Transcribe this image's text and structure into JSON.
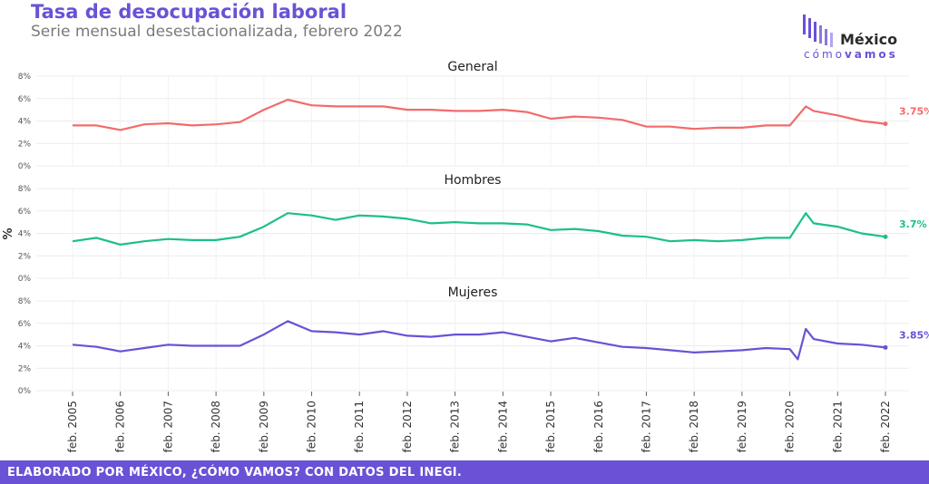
{
  "header": {
    "title": "Tasa de desocupación laboral",
    "subtitle": "Serie mensual desestacionalizada, febrero 2022"
  },
  "logo": {
    "word": "México",
    "sub_light": "cómo",
    "sub_bold": "vamos"
  },
  "footer": {
    "text": "ELABORADO POR MÉXICO, ¿CÓMO VAMOS? CON DATOS DEL INEGI."
  },
  "colors": {
    "accent": "#6a51d6",
    "general": "#f26b6b",
    "hombres": "#1cbf8a",
    "mujeres": "#6a51d6"
  },
  "chart_data": {
    "type": "line",
    "ylabel": "%",
    "y_ticks": [
      "0%",
      "2%",
      "4%",
      "6%",
      "8%"
    ],
    "ylim": [
      0,
      8
    ],
    "x_ticks": [
      "feb. 2005",
      "feb. 2006",
      "feb. 2007",
      "feb. 2008",
      "feb. 2009",
      "feb. 2010",
      "feb. 2011",
      "feb. 2012",
      "feb. 2013",
      "feb. 2014",
      "feb. 2015",
      "feb. 2016",
      "feb. 2017",
      "feb. 2018",
      "feb. 2019",
      "feb. 2020",
      "feb. 2021",
      "feb. 2022"
    ],
    "xlim": [
      "2005-02",
      "2022-02"
    ],
    "grid": true,
    "points_note": "x values are semiannual dates (YYYY-MM)",
    "panels": [
      {
        "name": "General",
        "color": "#f26b6b",
        "end_label": "3.75%",
        "x": [
          "2005-02",
          "2005-08",
          "2006-02",
          "2006-08",
          "2007-02",
          "2007-08",
          "2008-02",
          "2008-08",
          "2009-02",
          "2009-08",
          "2010-02",
          "2010-08",
          "2011-02",
          "2011-08",
          "2012-02",
          "2012-08",
          "2013-02",
          "2013-08",
          "2014-02",
          "2014-08",
          "2015-02",
          "2015-08",
          "2016-02",
          "2016-08",
          "2017-02",
          "2017-08",
          "2018-02",
          "2018-08",
          "2019-02",
          "2019-08",
          "2020-02",
          "2020-06",
          "2020-08",
          "2021-02",
          "2021-08",
          "2022-02"
        ],
        "values": [
          3.6,
          3.6,
          3.2,
          3.7,
          3.8,
          3.6,
          3.7,
          3.9,
          5.0,
          5.9,
          5.4,
          5.3,
          5.3,
          5.3,
          5.0,
          5.0,
          4.9,
          4.9,
          5.0,
          4.8,
          4.2,
          4.4,
          4.3,
          4.1,
          3.5,
          3.5,
          3.3,
          3.4,
          3.4,
          3.6,
          3.6,
          5.3,
          4.9,
          4.5,
          4.0,
          3.75
        ]
      },
      {
        "name": "Hombres",
        "color": "#1cbf8a",
        "end_label": "3.7%",
        "x": [
          "2005-02",
          "2005-08",
          "2006-02",
          "2006-08",
          "2007-02",
          "2007-08",
          "2008-02",
          "2008-08",
          "2009-02",
          "2009-08",
          "2010-02",
          "2010-08",
          "2011-02",
          "2011-08",
          "2012-02",
          "2012-08",
          "2013-02",
          "2013-08",
          "2014-02",
          "2014-08",
          "2015-02",
          "2015-08",
          "2016-02",
          "2016-08",
          "2017-02",
          "2017-08",
          "2018-02",
          "2018-08",
          "2019-02",
          "2019-08",
          "2020-02",
          "2020-06",
          "2020-08",
          "2021-02",
          "2021-08",
          "2022-02"
        ],
        "values": [
          3.3,
          3.6,
          3.0,
          3.3,
          3.5,
          3.4,
          3.4,
          3.7,
          4.6,
          5.8,
          5.6,
          5.2,
          5.6,
          5.5,
          5.3,
          4.9,
          5.0,
          4.9,
          4.9,
          4.8,
          4.3,
          4.4,
          4.2,
          3.8,
          3.7,
          3.3,
          3.4,
          3.3,
          3.4,
          3.6,
          3.6,
          5.8,
          4.9,
          4.6,
          4.0,
          3.7
        ]
      },
      {
        "name": "Mujeres",
        "color": "#6a51d6",
        "end_label": "3.85%",
        "x": [
          "2005-02",
          "2005-08",
          "2006-02",
          "2006-08",
          "2007-02",
          "2007-08",
          "2008-02",
          "2008-08",
          "2009-02",
          "2009-08",
          "2010-02",
          "2010-08",
          "2011-02",
          "2011-08",
          "2012-02",
          "2012-08",
          "2013-02",
          "2013-08",
          "2014-02",
          "2014-08",
          "2015-02",
          "2015-08",
          "2016-02",
          "2016-08",
          "2017-02",
          "2017-08",
          "2018-02",
          "2018-08",
          "2019-02",
          "2019-08",
          "2020-02",
          "2020-04",
          "2020-06",
          "2020-08",
          "2021-02",
          "2021-08",
          "2022-02"
        ],
        "values": [
          4.1,
          3.9,
          3.5,
          3.8,
          4.1,
          4.0,
          4.0,
          4.0,
          5.0,
          6.2,
          5.3,
          5.2,
          5.0,
          5.3,
          4.9,
          4.8,
          5.0,
          5.0,
          5.2,
          4.8,
          4.4,
          4.7,
          4.3,
          3.9,
          3.8,
          3.6,
          3.4,
          3.5,
          3.6,
          3.8,
          3.7,
          2.8,
          5.5,
          4.6,
          4.2,
          4.1,
          3.85
        ]
      }
    ]
  }
}
